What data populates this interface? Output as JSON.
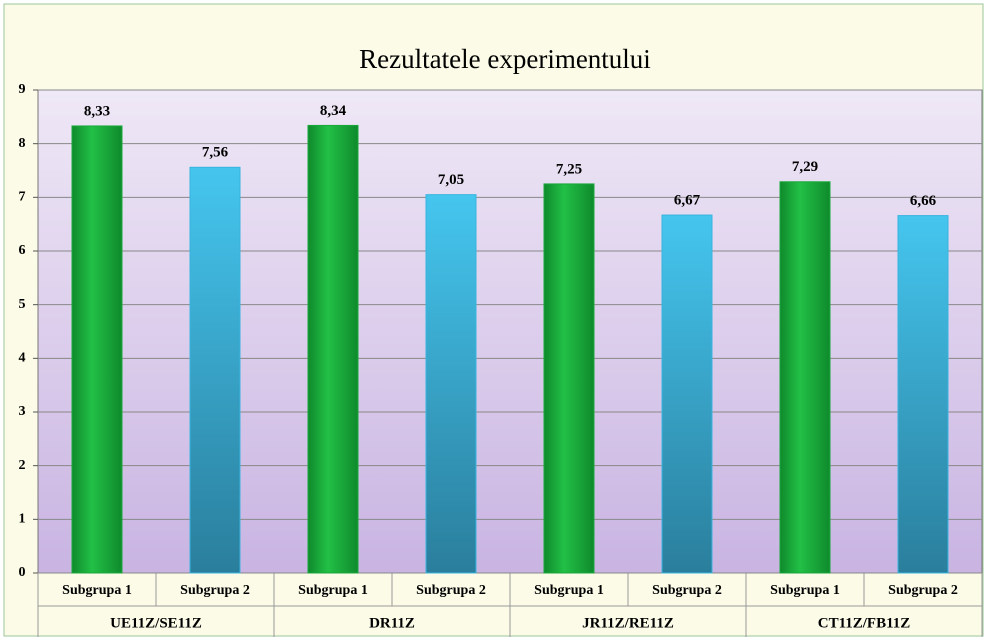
{
  "chart_data": {
    "type": "bar",
    "title": "Rezultatele experimentului",
    "categories": [
      "UE11Z/SE11Z",
      "DR11Z",
      "JR11Z/RE11Z",
      "CT11Z/FB11Z"
    ],
    "series": [
      {
        "name": "Subgrupa 1",
        "color": "#19a83a",
        "values": [
          8.33,
          8.34,
          7.25,
          7.29
        ],
        "value_labels": [
          "8,33",
          "8,34",
          "7,25",
          "7,29"
        ]
      },
      {
        "name": "Subgrupa 2",
        "color": "#38b4de",
        "values": [
          7.56,
          7.05,
          6.67,
          6.66
        ],
        "value_labels": [
          "7,56",
          "7,05",
          "6,67",
          "6,66"
        ]
      }
    ],
    "ylim": [
      0,
      9
    ],
    "yticks": [
      0,
      1,
      2,
      3,
      4,
      5,
      6,
      7,
      8,
      9
    ],
    "grid": true
  }
}
